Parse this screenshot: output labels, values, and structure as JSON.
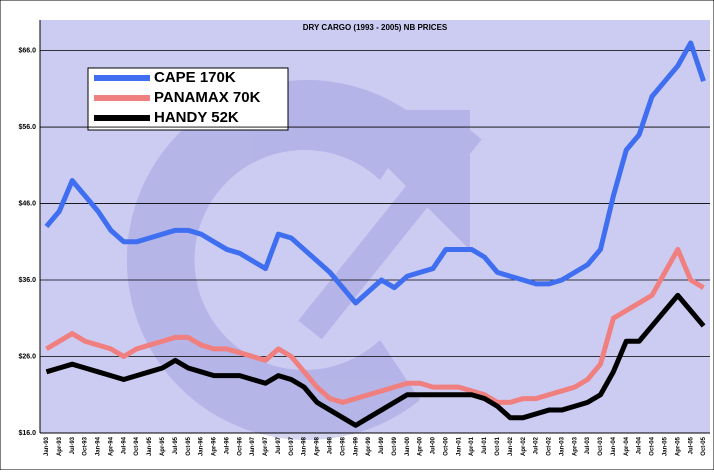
{
  "chart_data": {
    "type": "line",
    "title": "DRY CARGO (1993 - 2005) NB PRICES",
    "categories": [
      "Jan-93",
      "Apr-93",
      "Jul-93",
      "Oct-93",
      "Jan-94",
      "Apr-94",
      "Jul-94",
      "Oct-94",
      "Jan-95",
      "Apr-95",
      "Jul-95",
      "Oct-95",
      "Jan-96",
      "Apr-96",
      "Jul-96",
      "Oct-96",
      "Jan-97",
      "Apr-97",
      "Jul-97",
      "Oct-97",
      "Jan-98",
      "Apr-98",
      "Jul-98",
      "Oct-98",
      "Jan-99",
      "Apr-99",
      "Jul-99",
      "Oct-99",
      "Jan-00",
      "Apr-00",
      "Jul-00",
      "Oct-00",
      "Jan-01",
      "Apr-01",
      "Jul-01",
      "Oct-01",
      "Jan-02",
      "Apr-02",
      "Jul-02",
      "Oct-02",
      "Jan-03",
      "Apr-03",
      "Jul-03",
      "Oct-03",
      "Jan-04",
      "Apr-04",
      "Jul-04",
      "Oct-04",
      "Jan-05",
      "Apr-05",
      "Jul-05",
      "Oct-05"
    ],
    "series": [
      {
        "name": "CAPE 170K",
        "color": "#3f6ff0",
        "values": [
          43,
          45,
          49,
          47,
          45,
          42.5,
          41,
          41,
          41.5,
          42,
          42.5,
          42.5,
          42,
          41,
          40,
          39.5,
          38.5,
          37.5,
          42,
          41.5,
          40,
          38.5,
          37,
          35,
          33,
          34.5,
          36,
          35,
          36.5,
          37,
          37.5,
          40,
          40,
          40,
          39,
          37,
          36.5,
          36,
          35.5,
          35.5,
          36,
          37,
          38,
          40,
          47,
          53,
          55,
          60,
          62,
          64,
          67,
          62
        ]
      },
      {
        "name": "PANAMAX 70K",
        "color": "#f08080",
        "values": [
          27,
          28,
          29,
          28,
          27.5,
          27,
          26,
          27,
          27.5,
          28,
          28.5,
          28.5,
          27.5,
          27,
          27,
          26.5,
          26,
          25.5,
          27,
          26,
          24,
          22,
          20.5,
          20,
          20.5,
          21,
          21.5,
          22,
          22.5,
          22.5,
          22,
          22,
          22,
          21.5,
          21,
          20,
          20,
          20.5,
          20.5,
          21,
          21.5,
          22,
          23,
          25,
          31,
          32,
          33,
          34,
          37,
          40,
          36,
          35
        ]
      },
      {
        "name": "HANDY 52K",
        "color": "#000000",
        "values": [
          24,
          24.5,
          25,
          24.5,
          24,
          23.5,
          23,
          23.5,
          24,
          24.5,
          25.5,
          24.5,
          24,
          23.5,
          23.5,
          23.5,
          23,
          22.5,
          23.5,
          23,
          22,
          20,
          19,
          18,
          17,
          18,
          19,
          20,
          21,
          21,
          21,
          21,
          21,
          21,
          20.5,
          19.5,
          18,
          18,
          18.5,
          19,
          19,
          19.5,
          20,
          21,
          24,
          28,
          28,
          30,
          32,
          34,
          32,
          30
        ]
      }
    ],
    "ylim": [
      16,
      70
    ],
    "yticks": [
      {
        "value": 16,
        "label": "$16.0"
      },
      {
        "value": 26,
        "label": "$26.0"
      },
      {
        "value": 36,
        "label": "$36.0"
      },
      {
        "value": 46,
        "label": "$46.0"
      },
      {
        "value": 56,
        "label": "$56.0"
      },
      {
        "value": 66,
        "label": "$66.0"
      }
    ],
    "grid": true
  }
}
